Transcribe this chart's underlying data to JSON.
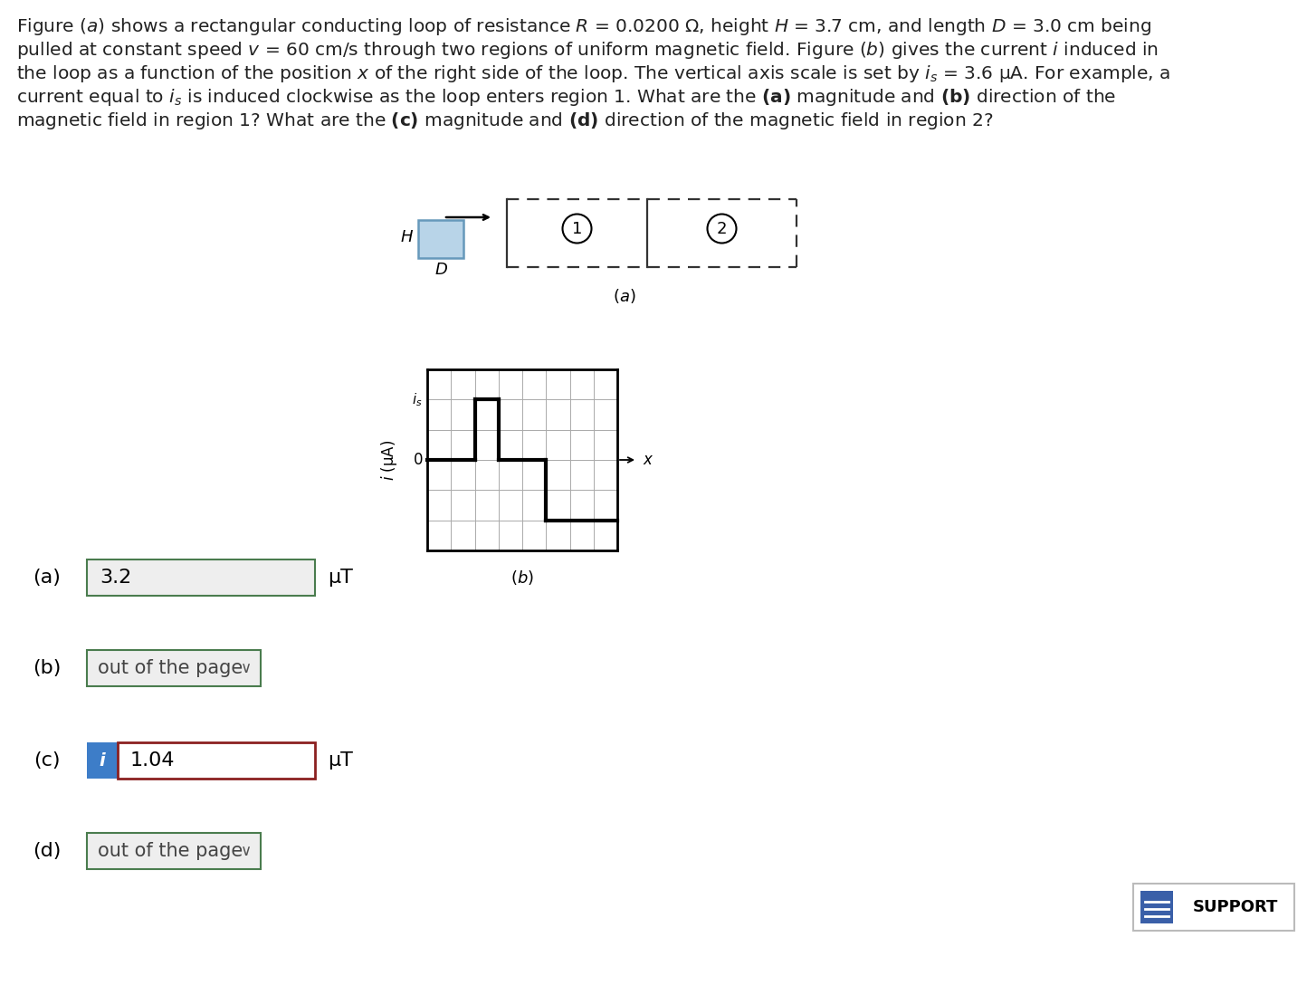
{
  "background_color": "#ffffff",
  "text_color": "#222222",
  "title_lines": [
    "Figure (a) shows a rectangular conducting loop of resistance R = 0.0200 Ω, height H = 3.7 cm, and length D = 3.0 cm being",
    "pulled at constant speed v = 60 cm/s through two regions of uniform magnetic field. Figure (b) gives the current i induced in",
    "the loop as a function of the position x of the right side of the loop. The vertical axis scale is set by iₛ = 3.6 μA. For example, a",
    "current equal to iₛ is induced clockwise as the loop enters region 1. What are the (a) magnitude and (b) direction of the",
    "magnetic field in region 1? What are the (c) magnitude and (d) direction of the magnetic field in region 2?"
  ],
  "answer_a_label": "(a)",
  "answer_a_value": "3.2",
  "answer_a_unit": "μT",
  "answer_b_label": "(b)",
  "answer_b_value": "out of the page",
  "answer_c_label": "(c)",
  "answer_c_value": "1.04",
  "answer_c_unit": "μT",
  "answer_d_label": "(d)",
  "answer_d_value": "out of the page",
  "support_text": "SUPPORT",
  "loop_fill_color": "#b8d4e8",
  "loop_edge_color": "#6699bb",
  "fig_a_caption": "(a)",
  "fig_b_caption": "(b)",
  "box_a_border": "#4a7c4e",
  "box_b_border": "#4a7c4e",
  "box_c_border_red": "#8b2020",
  "box_i_badge_color": "#3d7dc8",
  "grid_color": "#aaaaaa",
  "wave_color": "#000000",
  "dash_color": "#333333"
}
